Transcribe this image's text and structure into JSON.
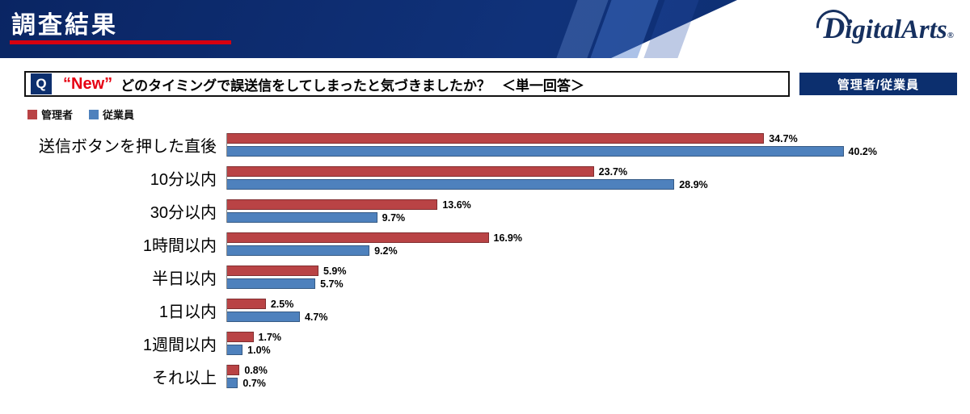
{
  "header": {
    "title": "調査結果",
    "logo_d": "D",
    "logo_rest": "igitalArts",
    "logo_reg": "®"
  },
  "question": {
    "q": "Q",
    "new": "“New”",
    "text": "どのタイミングで誤送信をしてしまったと気づきましたか？",
    "answer_type": "＜単一回答＞",
    "badge": "管理者/従業員"
  },
  "legend": {
    "items": [
      {
        "label": "管理者",
        "color": "#b94345"
      },
      {
        "label": "従業員",
        "color": "#4e81bd"
      }
    ]
  },
  "chart_data": {
    "type": "bar",
    "orientation": "horizontal",
    "title": "どのタイミングで誤送信をしてしまったと気づきましたか？（単一回答）",
    "categories": [
      "送信ボタンを押した直後",
      "10分以内",
      "30分以内",
      "1時間以内",
      "半日以内",
      "1日以内",
      "1週間以内",
      "それ以上"
    ],
    "series": [
      {
        "name": "管理者",
        "key": "admin",
        "color": "#b94345",
        "values": [
          34.7,
          23.7,
          13.6,
          16.9,
          5.9,
          2.5,
          1.7,
          0.8
        ]
      },
      {
        "name": "従業員",
        "key": "employee",
        "color": "#4e81bd",
        "values": [
          40.2,
          28.9,
          9.7,
          9.2,
          5.7,
          4.7,
          1.0,
          0.7
        ]
      }
    ],
    "value_suffix": "%",
    "xlim": [
      0,
      42
    ],
    "grid": false,
    "legend_position": "top-left"
  }
}
